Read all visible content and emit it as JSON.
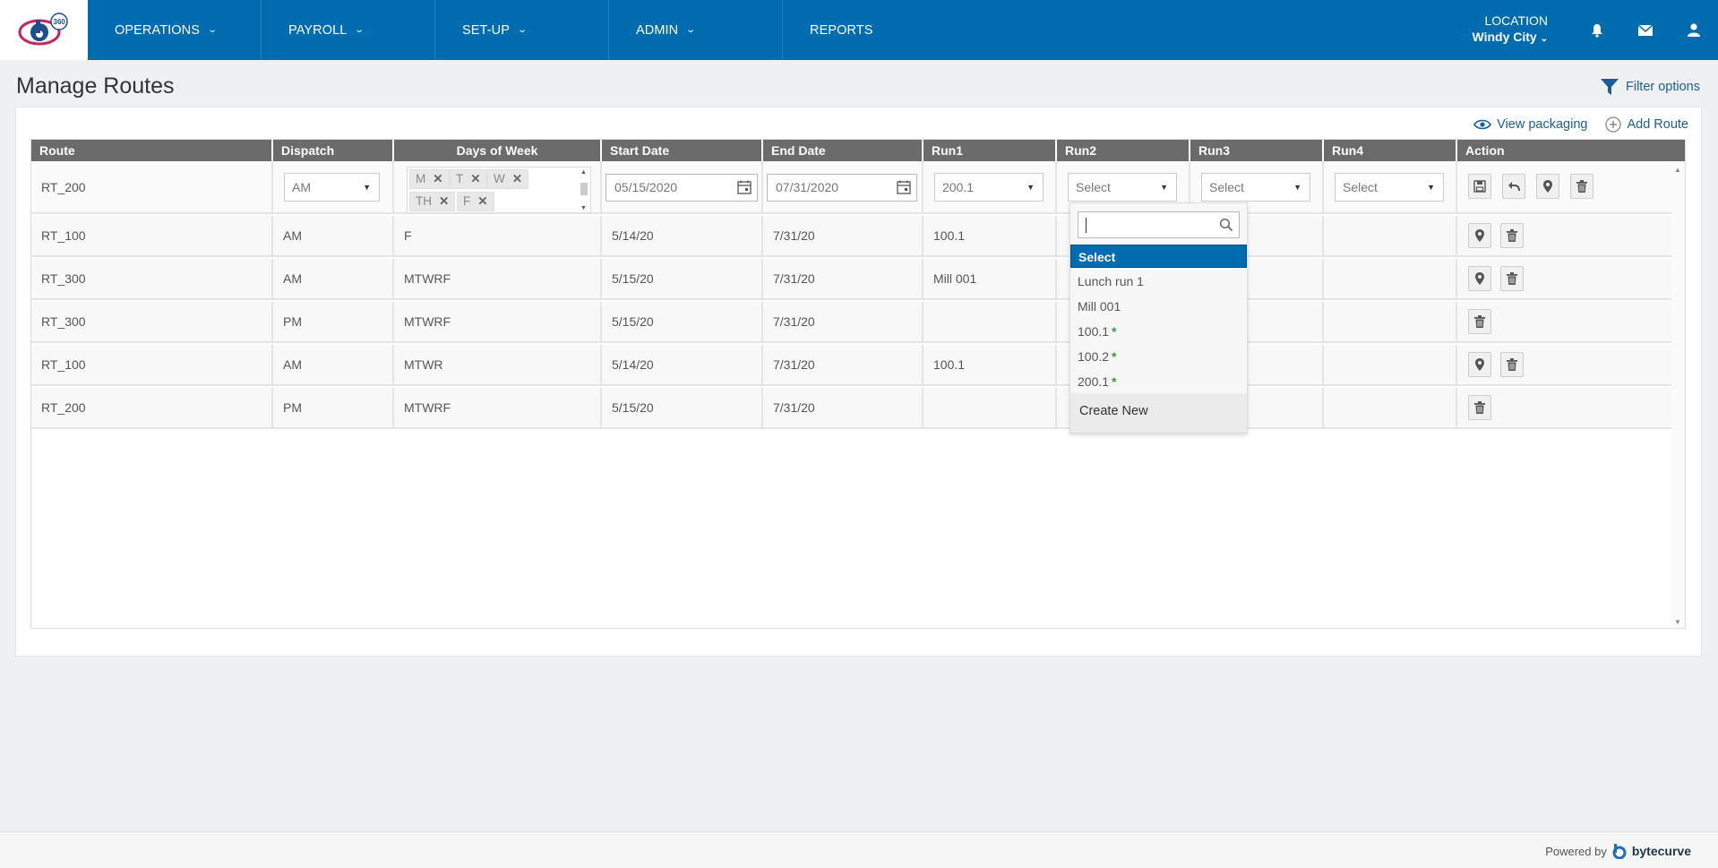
{
  "nav": {
    "items": [
      {
        "label": "OPERATIONS",
        "has_menu": true
      },
      {
        "label": "PAYROLL",
        "has_menu": true
      },
      {
        "label": "SET-UP",
        "has_menu": true
      },
      {
        "label": "ADMIN",
        "has_menu": true
      },
      {
        "label": "REPORTS",
        "has_menu": false
      }
    ],
    "location_label": "LOCATION",
    "location_value": "Windy City",
    "icons": [
      "bell-icon",
      "mail-icon",
      "user-icon"
    ],
    "logo_badge": "360"
  },
  "page": {
    "title": "Manage Routes",
    "filter_label": "Filter options",
    "view_packaging": "View packaging",
    "add_route": "Add Route"
  },
  "grid": {
    "columns": [
      "Route",
      "Dispatch",
      "Days of Week",
      "Start Date",
      "End Date",
      "Run1",
      "Run2",
      "Run3",
      "Run4",
      "Action"
    ],
    "edit_row": {
      "route": "RT_200",
      "dispatch": "AM",
      "days": [
        "M",
        "T",
        "W",
        "TH",
        "F"
      ],
      "start_date": "05/15/2020",
      "end_date": "07/31/2020",
      "run1": "200.1",
      "run2": "Select",
      "run3": "Select",
      "run4": "Select"
    },
    "rows": [
      {
        "route": "RT_100",
        "dispatch": "AM",
        "days": "F",
        "start": "5/14/20",
        "end": "7/31/20",
        "run1": "100.1"
      },
      {
        "route": "RT_300",
        "dispatch": "AM",
        "days": "MTWRF",
        "start": "5/15/20",
        "end": "7/31/20",
        "run1": "Mill 001"
      },
      {
        "route": "RT_300",
        "dispatch": "PM",
        "days": "MTWRF",
        "start": "5/15/20",
        "end": "7/31/20",
        "run1": ""
      },
      {
        "route": "RT_100",
        "dispatch": "AM",
        "days": "MTWR",
        "start": "5/14/20",
        "end": "7/31/20",
        "run1": "100.1"
      },
      {
        "route": "RT_200",
        "dispatch": "PM",
        "days": "MTWRF",
        "start": "5/15/20",
        "end": "7/31/20",
        "run1": ""
      }
    ]
  },
  "dropdown": {
    "items": [
      {
        "label": "Select",
        "star": false,
        "selected": true
      },
      {
        "label": "Lunch run 1",
        "star": false,
        "selected": false
      },
      {
        "label": "Mill 001",
        "star": false,
        "selected": false
      },
      {
        "label": "100.1",
        "star": true,
        "selected": false
      },
      {
        "label": "100.2",
        "star": true,
        "selected": false
      },
      {
        "label": "200.1",
        "star": true,
        "selected": false
      }
    ],
    "star_symbol": "*",
    "create_new": "Create New"
  },
  "footer": {
    "powered_by": "Powered by",
    "brand": "bytecurve"
  },
  "colors": {
    "primary": "#006cb0",
    "header_gray": "#6b6b6b",
    "link": "#1a5d99",
    "star_green": "#3c9a3c"
  }
}
